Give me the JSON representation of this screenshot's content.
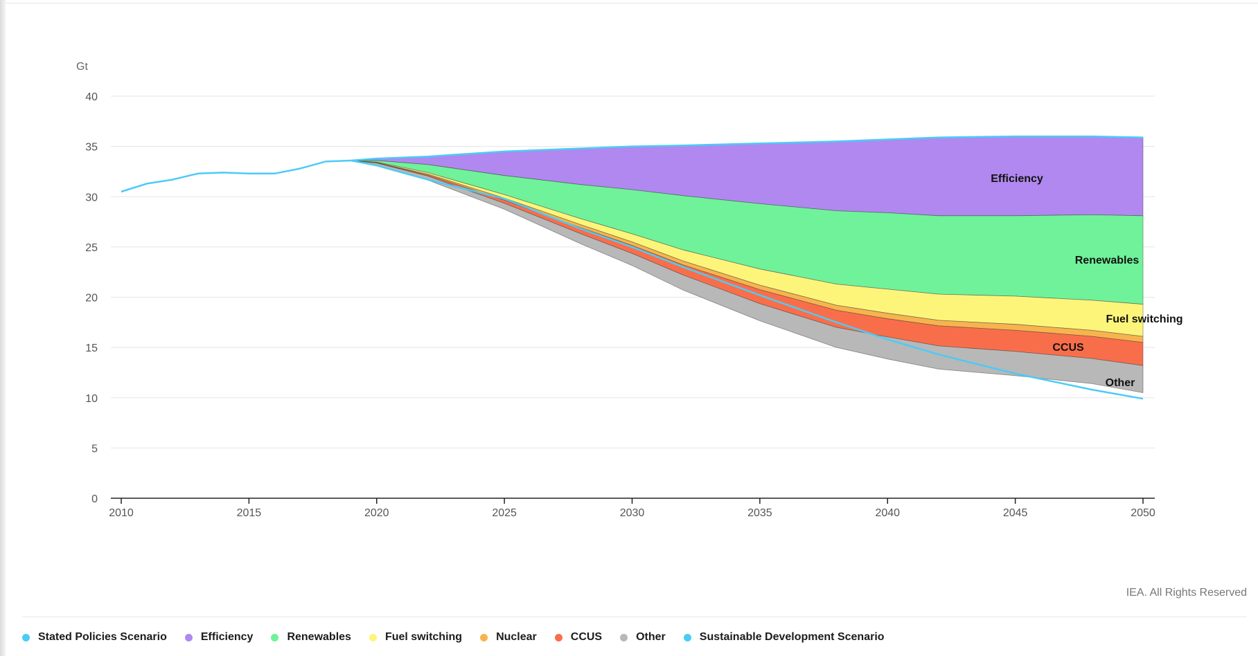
{
  "chart_data": {
    "type": "area",
    "ylabel": "Gt",
    "ylim": [
      0,
      40
    ],
    "xlim": [
      2010,
      2050
    ],
    "y_ticks": [
      0,
      5,
      10,
      15,
      20,
      25,
      30,
      35,
      40
    ],
    "x_ticks": [
      2010,
      2015,
      2020,
      2025,
      2030,
      2035,
      2040,
      2045,
      2050
    ],
    "grid": true,
    "legend_position": "bottom",
    "credit": "IEA. All Rights Reserved",
    "historical": {
      "name": "Stated Policies Scenario",
      "color": "#4ccbf5",
      "x": [
        2010,
        2011,
        2012,
        2013,
        2014,
        2015,
        2016,
        2017,
        2018,
        2019
      ],
      "y": [
        30.5,
        31.3,
        31.7,
        32.3,
        32.4,
        32.3,
        32.3,
        32.8,
        33.5,
        33.6
      ]
    },
    "x": [
      2019,
      2020,
      2022,
      2025,
      2028,
      2030,
      2032,
      2035,
      2038,
      2040,
      2042,
      2045,
      2048,
      2050
    ],
    "stated_policies": [
      33.6,
      33.8,
      34.0,
      34.5,
      34.8,
      35.0,
      35.1,
      35.3,
      35.5,
      35.7,
      35.9,
      36.0,
      36.0,
      35.9
    ],
    "sustainable_development": [
      33.6,
      33.1,
      31.7,
      29.8,
      26.8,
      25.0,
      23.0,
      20.2,
      17.5,
      15.8,
      14.3,
      12.4,
      10.8,
      9.9
    ],
    "series": [
      {
        "name": "Efficiency",
        "color": "#b088ef",
        "values": [
          0.0,
          0.2,
          0.8,
          2.4,
          3.6,
          4.3,
          5.0,
          6.0,
          6.9,
          7.3,
          7.8,
          7.9,
          7.8,
          7.8
        ]
      },
      {
        "name": "Renewables",
        "color": "#6ff29a",
        "values": [
          0.0,
          0.15,
          0.8,
          1.9,
          3.4,
          4.4,
          5.4,
          6.5,
          7.3,
          7.6,
          7.8,
          8.0,
          8.5,
          8.8
        ]
      },
      {
        "name": "Fuel switching",
        "color": "#fdf57a",
        "values": [
          0.0,
          0.05,
          0.15,
          0.35,
          0.6,
          0.8,
          1.1,
          1.6,
          2.1,
          2.4,
          2.6,
          2.8,
          3.0,
          3.2
        ]
      },
      {
        "name": "Nuclear",
        "color": "#f8b34e",
        "values": [
          0.0,
          0.03,
          0.1,
          0.2,
          0.3,
          0.35,
          0.4,
          0.45,
          0.5,
          0.55,
          0.55,
          0.6,
          0.6,
          0.6
        ]
      },
      {
        "name": "CCUS",
        "color": "#f96e4a",
        "values": [
          0.0,
          0.03,
          0.1,
          0.3,
          0.6,
          0.8,
          1.0,
          1.4,
          1.7,
          1.8,
          2.0,
          2.1,
          2.2,
          2.3
        ]
      },
      {
        "name": "Other",
        "color": "#b8b8b8",
        "values": [
          0.0,
          0.2,
          0.4,
          0.6,
          1.0,
          1.2,
          1.5,
          1.7,
          2.0,
          2.2,
          2.3,
          2.4,
          2.5,
          2.7
        ]
      }
    ],
    "area_labels": [
      {
        "text": "Efficiency"
      },
      {
        "text": "Renewables"
      },
      {
        "text": "Fuel switching"
      },
      {
        "text": "CCUS"
      },
      {
        "text": "Other"
      }
    ],
    "legend": [
      {
        "name": "Stated Policies Scenario",
        "color": "#4ccbf5"
      },
      {
        "name": "Efficiency",
        "color": "#b088ef"
      },
      {
        "name": "Renewables",
        "color": "#6ff29a"
      },
      {
        "name": "Fuel switching",
        "color": "#fdf57a"
      },
      {
        "name": "Nuclear",
        "color": "#f8b34e"
      },
      {
        "name": "CCUS",
        "color": "#f96e4a"
      },
      {
        "name": "Other",
        "color": "#b8b8b8"
      },
      {
        "name": "Sustainable Development Scenario",
        "color": "#4ccbf5"
      }
    ]
  }
}
